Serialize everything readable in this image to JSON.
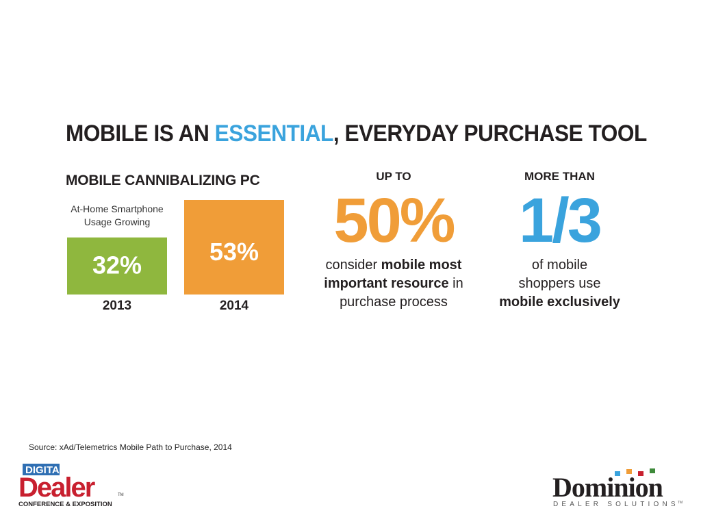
{
  "slide": {
    "headline_before": "MOBILE IS AN ",
    "headline_accent": "ESSENTIAL",
    "headline_after": ", EVERYDAY PURCHASE TOOL",
    "subhead": "MOBILE CANNIBALIZING PC",
    "source": "Source: xAd/Telemetrics Mobile Path to Purchase, 2014"
  },
  "chart_data": {
    "type": "bar",
    "title": "MOBILE CANNIBALIZING PC",
    "subtitle": "At-Home Smartphone Usage Growing",
    "categories": [
      "2013",
      "2014"
    ],
    "values": [
      32,
      53
    ],
    "value_labels": [
      "32%",
      "53%"
    ],
    "colors": [
      "#8fb73e",
      "#f09d38"
    ],
    "ylim": [
      0,
      53
    ],
    "grid": false,
    "legend": "none"
  },
  "stats": [
    {
      "kicker": "UP TO",
      "value": "50%",
      "color": "#f09d38",
      "line1_pre": "consider ",
      "line1_bold": "mobile most",
      "line2_bold": "important resource",
      "line2_post": " in",
      "line3": "purchase process"
    },
    {
      "kicker": "MORE THAN",
      "value": "1/3",
      "color": "#3aa3dd",
      "line1": "of mobile",
      "line2": "shoppers use",
      "line3_bold": "mobile exclusively"
    }
  ],
  "logos": {
    "left_top": "DIGITAL",
    "left_main": "Dealer",
    "left_tm": "TM",
    "left_tagline": "CONFERENCE & EXPOSITION",
    "right_main": "Dominion",
    "right_tagline": "DEALER SOLUTIONS",
    "right_tm": "TM"
  },
  "colors": {
    "accent_blue": "#3aa3dd",
    "orange": "#f09d38",
    "green": "#8fb73e",
    "text": "#231f20",
    "logo_red": "#c8202f",
    "logo_blue": "#2f6fb3"
  }
}
